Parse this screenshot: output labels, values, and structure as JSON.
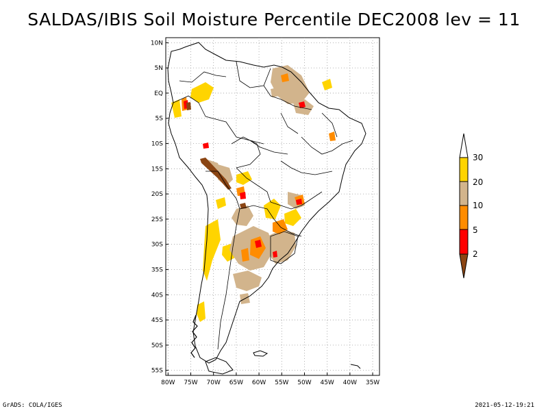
{
  "title": "SALDAS/IBIS Soil Moisture Percentile DEC2008 lev = 11",
  "map": {
    "region": "South America",
    "lat_ticks": [
      "10N",
      "5N",
      "EQ",
      "5S",
      "10S",
      "15S",
      "20S",
      "25S",
      "30S",
      "35S",
      "40S",
      "45S",
      "50S",
      "55S"
    ],
    "lat_values": [
      10,
      5,
      0,
      -5,
      -10,
      -15,
      -20,
      -25,
      -30,
      -35,
      -40,
      -45,
      -50,
      -55
    ],
    "lon_ticks": [
      "80W",
      "75W",
      "70W",
      "65W",
      "60W",
      "55W",
      "50W",
      "45W",
      "40W",
      "35W"
    ],
    "lon_values": [
      -80,
      -75,
      -70,
      -65,
      -60,
      -55,
      -50,
      -45,
      -40,
      -35
    ],
    "extent": {
      "lon_min": -80.5,
      "lon_max": -33.5,
      "lat_min": -56,
      "lat_max": 11
    }
  },
  "colorbar": {
    "labels": [
      "30",
      "20",
      "10",
      "5",
      "2"
    ],
    "colors": {
      "above30": "#ffffff",
      "c20_30": "#ffd400",
      "c10_20": "#d2b48c",
      "c5_10": "#ff8c00",
      "c2_5": "#ff0000",
      "below2": "#8b4513"
    }
  },
  "footer": {
    "left": "GrADS: COLA/IGES",
    "right": "2021-05-12-19:21"
  }
}
